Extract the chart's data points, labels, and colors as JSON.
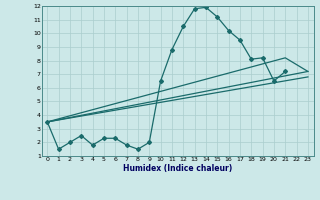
{
  "xlabel": "Humidex (Indice chaleur)",
  "bg_color": "#cce8e8",
  "grid_color": "#aacece",
  "line_color": "#1a6b6b",
  "xlim": [
    -0.5,
    23.5
  ],
  "ylim": [
    1,
    12
  ],
  "xticks": [
    0,
    1,
    2,
    3,
    4,
    5,
    6,
    7,
    8,
    9,
    10,
    11,
    12,
    13,
    14,
    15,
    16,
    17,
    18,
    19,
    20,
    21,
    22,
    23
  ],
  "yticks": [
    1,
    2,
    3,
    4,
    5,
    6,
    7,
    8,
    9,
    10,
    11,
    12
  ],
  "line1_x": [
    0,
    1,
    2,
    3,
    4,
    5,
    6,
    7,
    8,
    9,
    10,
    11,
    12,
    13,
    14,
    15,
    16,
    17,
    18,
    19,
    20,
    21
  ],
  "line1_y": [
    3.5,
    1.5,
    2.0,
    2.5,
    1.8,
    2.3,
    2.3,
    1.8,
    1.5,
    2.0,
    6.5,
    8.8,
    10.5,
    11.8,
    11.9,
    11.2,
    10.2,
    9.5,
    8.1,
    8.2,
    6.5,
    7.2
  ],
  "line2_x": [
    0,
    23
  ],
  "line2_y": [
    3.5,
    6.8
  ],
  "line3_x": [
    0,
    23
  ],
  "line3_y": [
    3.5,
    7.2
  ],
  "line4_x": [
    0,
    21,
    23
  ],
  "line4_y": [
    3.5,
    8.2,
    7.2
  ]
}
